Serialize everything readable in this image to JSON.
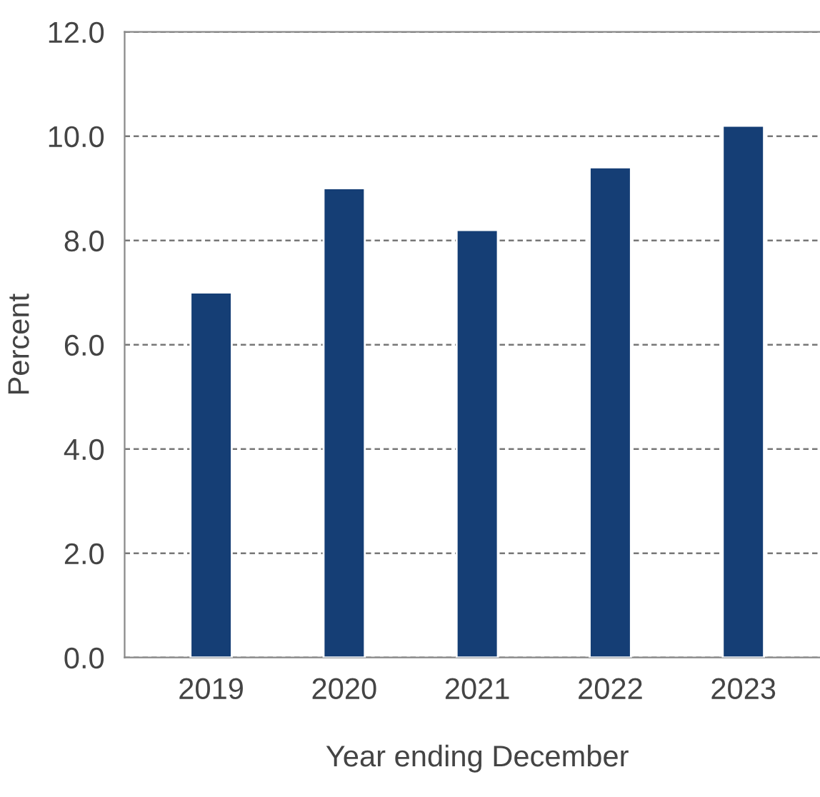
{
  "chart_data": {
    "type": "bar",
    "xlabel": "Year ending December",
    "ylabel": "Percent",
    "categories": [
      "2019",
      "2020",
      "2021",
      "2022",
      "2023"
    ],
    "values": [
      7.0,
      9.0,
      8.2,
      9.4,
      10.2
    ],
    "color": "#153e75",
    "ylim": [
      0,
      12
    ],
    "yticks": [
      {
        "value": 0,
        "label": "0.0"
      },
      {
        "value": 2,
        "label": "2.0"
      },
      {
        "value": 4,
        "label": "4.0"
      },
      {
        "value": 6,
        "label": "6.0"
      },
      {
        "value": 8,
        "label": "8.0"
      },
      {
        "value": 10,
        "label": "10.0"
      },
      {
        "value": 12,
        "label": "12.0"
      }
    ],
    "grid": "y",
    "line_style": "dashed"
  }
}
